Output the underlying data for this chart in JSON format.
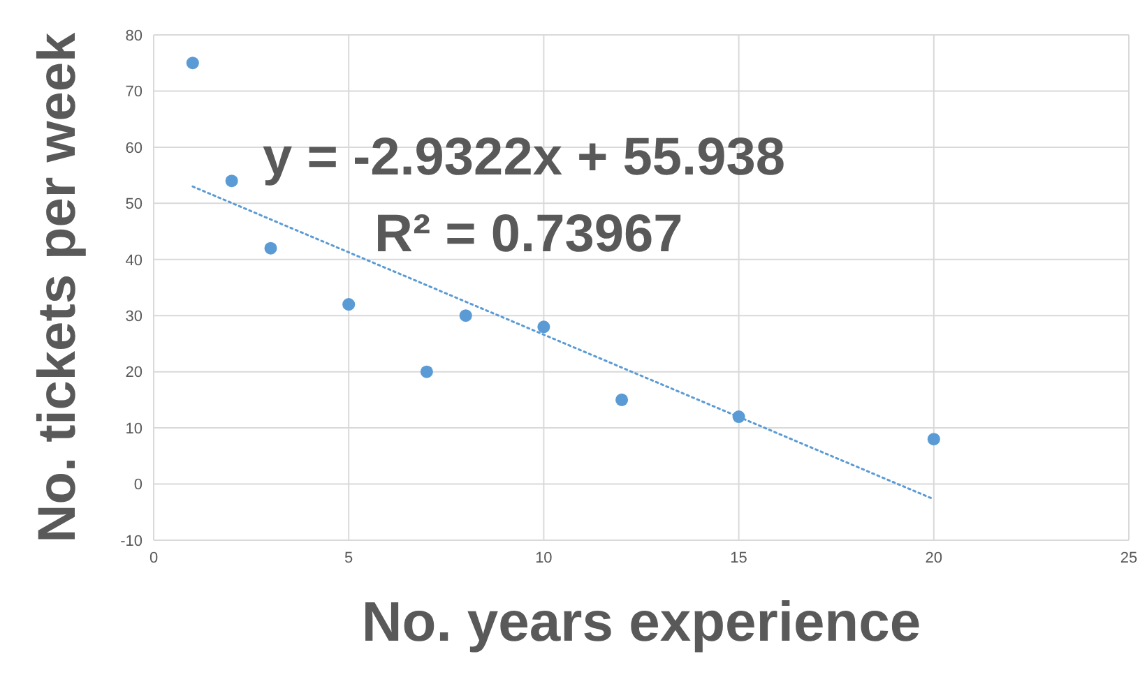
{
  "chart_data": {
    "type": "scatter",
    "xlabel": "No. years experience",
    "ylabel": "No. tickets per week",
    "annotations": [
      "y = -2.9322x + 55.938",
      "R² = 0.73967"
    ],
    "xlim": [
      0,
      25
    ],
    "xticks": [
      0,
      5,
      10,
      15,
      20,
      25
    ],
    "ylim": [
      -10,
      80
    ],
    "yticks": [
      -10,
      0,
      10,
      20,
      30,
      40,
      50,
      60,
      70,
      80
    ],
    "grid": true,
    "series": [
      {
        "marker": "circle",
        "color": "#5b9bd5",
        "x": [
          1,
          2,
          3,
          5,
          7,
          8,
          10,
          12,
          15,
          20
        ],
        "values": [
          75,
          54,
          42,
          32,
          20,
          30,
          28,
          15,
          12,
          8
        ]
      },
      {
        "type": "line",
        "color": "#5b9bd5",
        "line_style": "dotted",
        "marker": "none",
        "x": [
          1,
          20
        ],
        "values": [
          53.0,
          -2.7
        ]
      }
    ]
  }
}
